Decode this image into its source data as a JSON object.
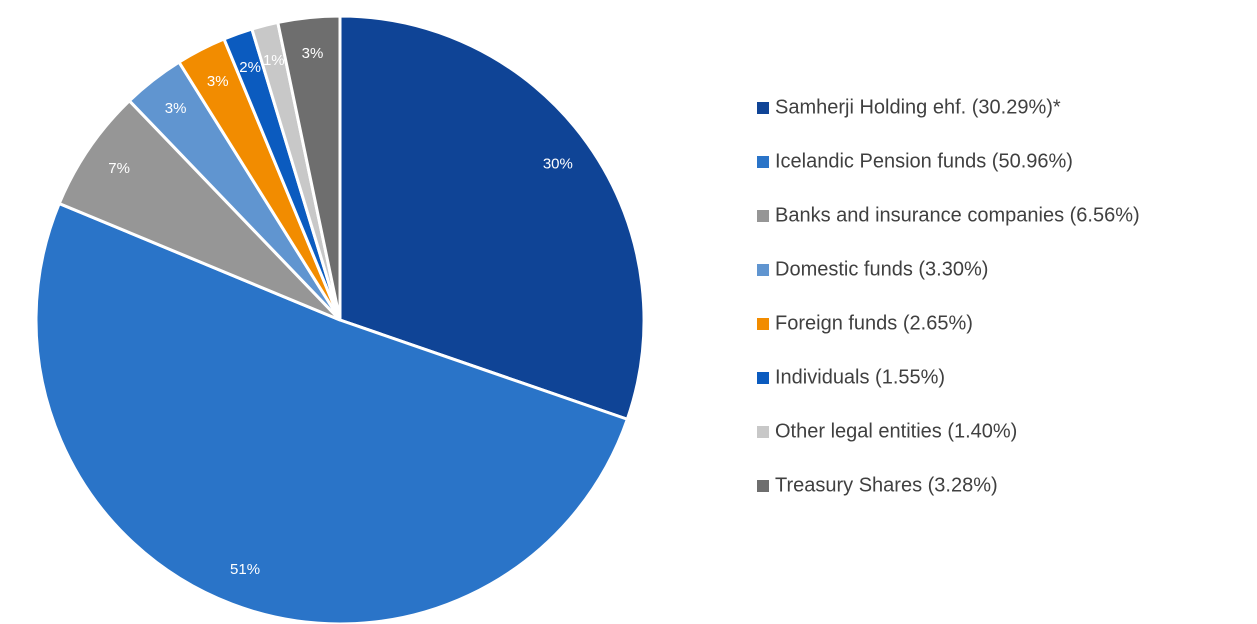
{
  "chart_data": {
    "type": "pie",
    "categories": [
      "Samherji Holding ehf. (30.29%)*",
      "Icelandic Pension funds (50.96%)",
      "Banks and insurance companies (6.56%)",
      "Domestic funds (3.30%)",
      "Foreign funds (2.65%)",
      "Individuals (1.55%)",
      "Other legal entities (1.40%)",
      "Treasury Shares (3.28%)"
    ],
    "values": [
      30.29,
      50.96,
      6.56,
      3.3,
      2.65,
      1.55,
      1.4,
      3.28
    ],
    "value_labels": [
      "30%",
      "51%",
      "7%",
      "3%",
      "3%",
      "2%",
      "1%",
      "3%"
    ],
    "colors": [
      "#0f4496",
      "#2a74c8",
      "#969696",
      "#6095d0",
      "#f28c00",
      "#0b5bbf",
      "#c8c8c8",
      "#6e6e6e"
    ],
    "legend": "right"
  }
}
